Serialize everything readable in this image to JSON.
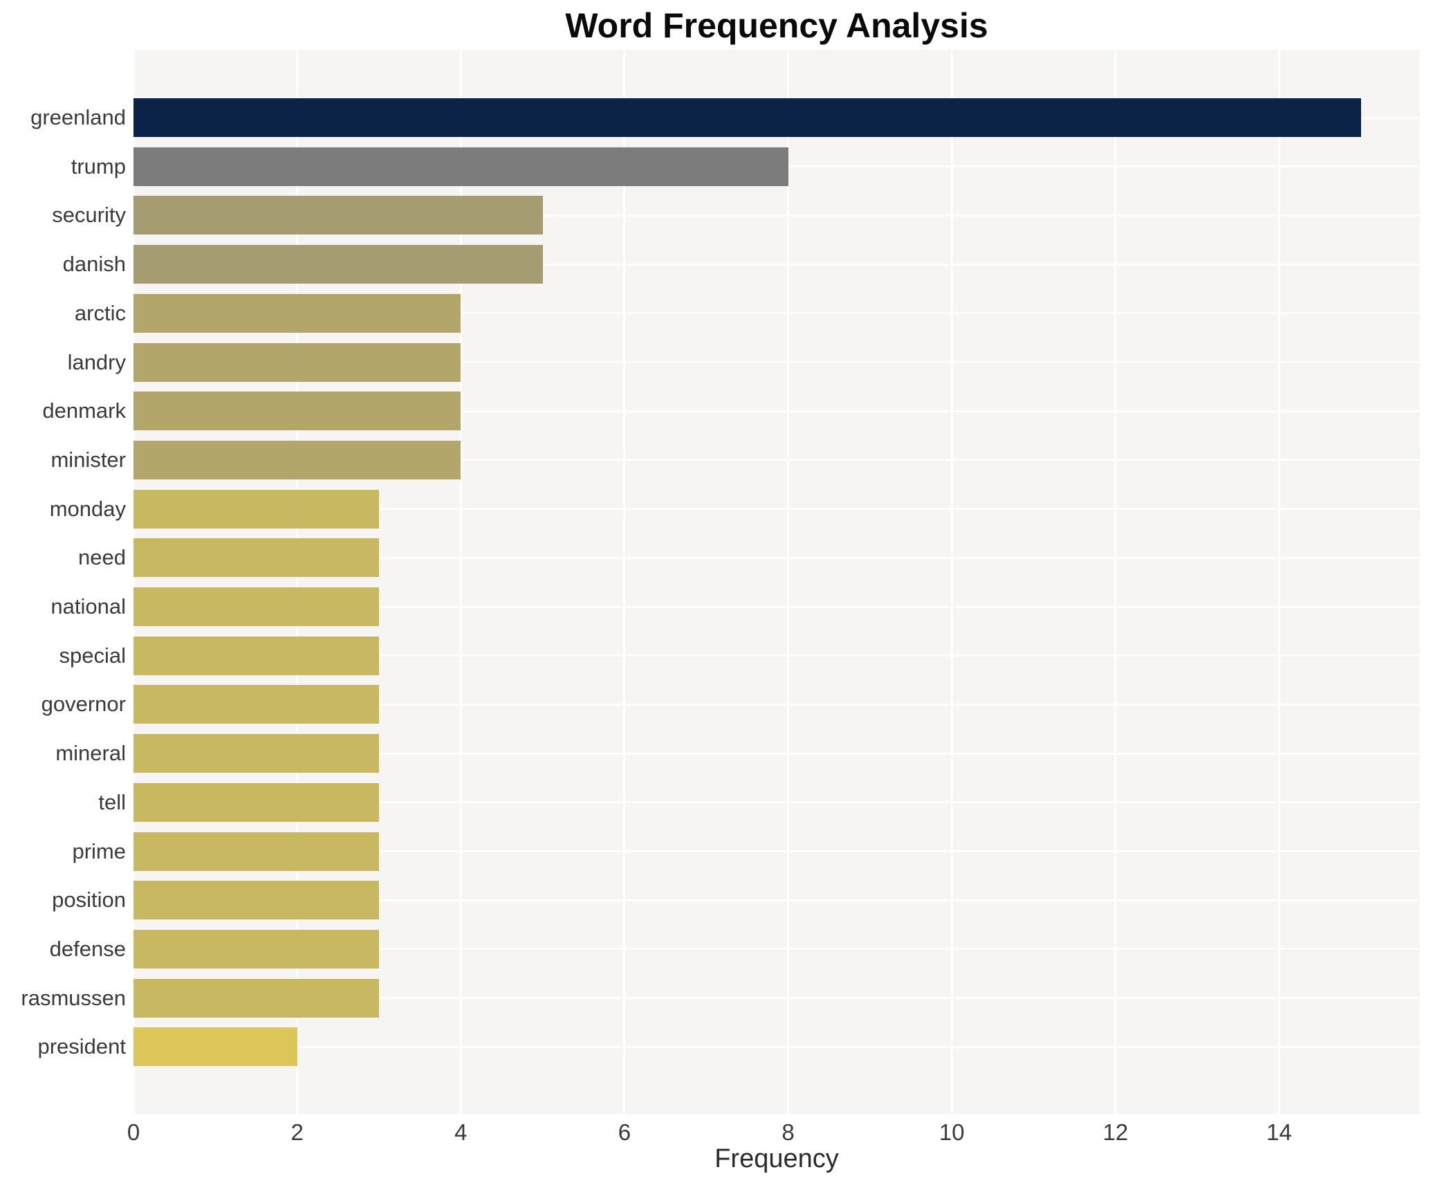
{
  "chart_data": {
    "type": "bar",
    "orientation": "horizontal",
    "title": "Word Frequency Analysis",
    "xlabel": "Frequency",
    "ylabel": "",
    "categories": [
      "greenland",
      "trump",
      "security",
      "danish",
      "arctic",
      "landry",
      "denmark",
      "minister",
      "monday",
      "need",
      "national",
      "special",
      "governor",
      "mineral",
      "tell",
      "prime",
      "position",
      "defense",
      "rasmussen",
      "president"
    ],
    "values": [
      15,
      8,
      5,
      5,
      4,
      4,
      4,
      4,
      3,
      3,
      3,
      3,
      3,
      3,
      3,
      3,
      3,
      3,
      3,
      2
    ],
    "bar_colors": [
      "#0b2346",
      "#7c7c7c",
      "#a59c72",
      "#a59c72",
      "#b2a66b",
      "#b2a66b",
      "#b2a66b",
      "#b2a66b",
      "#c9b862",
      "#c9b862",
      "#c9b862",
      "#c9b862",
      "#c9b862",
      "#c9b862",
      "#c9b862",
      "#c9b862",
      "#c9b862",
      "#c9b862",
      "#c9b862",
      "#dcc559"
    ],
    "xticks": [
      0,
      2,
      4,
      6,
      8,
      10,
      12,
      14
    ],
    "xlim": [
      0,
      15.72
    ],
    "grid": true,
    "legend": false,
    "plot_background": "#f6f5f3",
    "grid_color": "#ffffff",
    "figure_background": "#ffffff"
  }
}
